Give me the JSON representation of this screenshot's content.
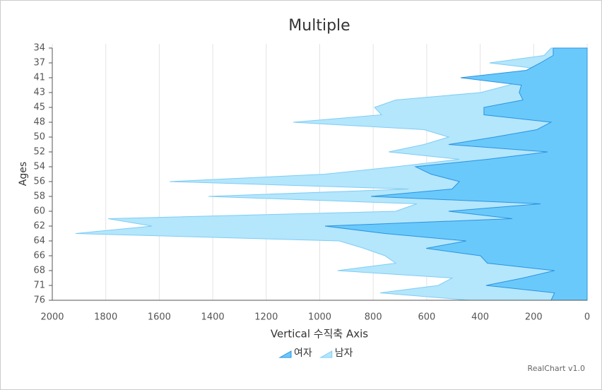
{
  "chart_data": {
    "type": "area",
    "orientation": "horizontal",
    "title": "Multiple",
    "x_label": "Vertical 수직축 Axis",
    "y_label": "Ages",
    "credit": "RealChart v1.0",
    "categories": [
      "34",
      null,
      "37",
      null,
      "41",
      null,
      "43",
      null,
      "45",
      null,
      "48",
      null,
      "50",
      null,
      "52",
      null,
      "54",
      null,
      "56",
      null,
      "58",
      null,
      "60",
      null,
      "62",
      null,
      "64",
      null,
      "66",
      null,
      "68",
      null,
      "71",
      null,
      "76"
    ],
    "series": [
      {
        "name": "남자",
        "color": "#b4e6fc",
        "values": [
          135,
          161,
          365,
          135,
          219,
          293,
          399,
          716,
          795,
          769,
          1099,
          610,
          518,
          610,
          742,
          478,
          716,
          980,
          1561,
          668,
          1416,
          637,
          716,
          1791,
          1627,
          1913,
          927,
          835,
          756,
          716,
          933,
          505,
          557,
          774,
          439
        ]
      },
      {
        "name": "여자",
        "color": "#6ac9fb",
        "values": [
          127,
          127,
          175,
          227,
          473,
          246,
          254,
          240,
          386,
          386,
          135,
          188,
          346,
          518,
          148,
          373,
          642,
          584,
          478,
          505,
          808,
          174,
          518,
          280,
          980,
          756,
          452,
          602,
          399,
          373,
          122,
          240,
          378,
          122,
          135
        ]
      }
    ],
    "xlim": [
      2000,
      0
    ],
    "xticks": [
      2000,
      1800,
      1600,
      1400,
      1200,
      1000,
      800,
      600,
      400,
      200,
      0
    ],
    "grid": true
  }
}
